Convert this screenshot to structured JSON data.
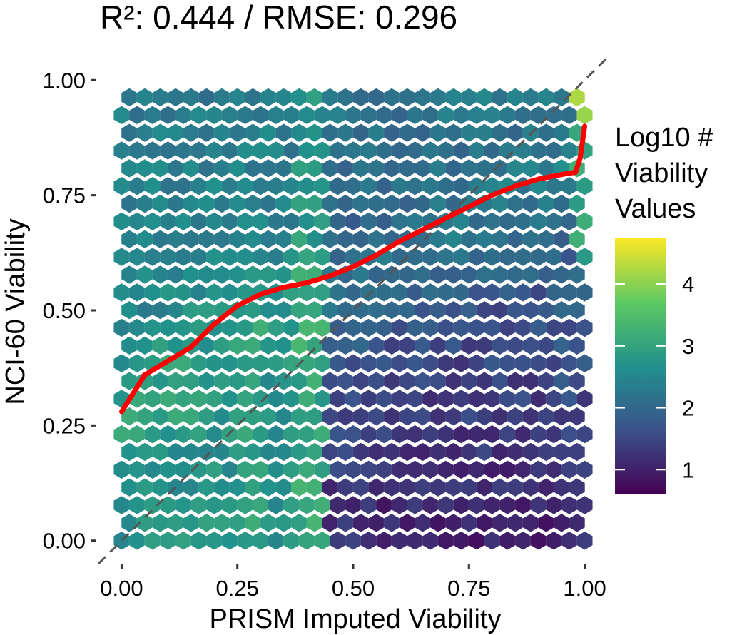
{
  "chart_data": {
    "type": "heatmap",
    "subtype": "hexbin",
    "title": "R²: 0.444 / RMSE: 0.296",
    "xlabel": "PRISM Imputed Viability",
    "ylabel": "NCI-60 Viability",
    "xlim": [
      -0.05,
      1.05
    ],
    "ylim": [
      -0.05,
      1.05
    ],
    "x_ticks": [
      0.0,
      0.25,
      0.5,
      0.75,
      1.0
    ],
    "x_tick_labels": [
      "0.00",
      "0.25",
      "0.50",
      "0.75",
      "1.00"
    ],
    "y_ticks": [
      0.0,
      0.25,
      0.5,
      0.75,
      1.0
    ],
    "y_tick_labels": [
      "0.00",
      "0.25",
      "0.50",
      "0.75",
      "1.00"
    ],
    "grid": false,
    "colorbar": {
      "title_lines": [
        "Log10 #",
        "Viability",
        "Values"
      ],
      "min": 0.6,
      "max": 4.75,
      "ticks": [
        1,
        2,
        3,
        4
      ],
      "tick_labels": [
        "1",
        "2",
        "3",
        "4"
      ],
      "colors": [
        "#440154",
        "#3b528b",
        "#21918c",
        "#5ec962",
        "#fde725"
      ],
      "placement": "right"
    },
    "identity_line": {
      "from": [
        0,
        0
      ],
      "to": [
        1,
        1
      ],
      "style": "dashed",
      "color": "#555555"
    },
    "fit_curve": {
      "color": "#ff0000",
      "x": [
        0.0,
        0.05,
        0.1,
        0.15,
        0.2,
        0.25,
        0.3,
        0.35,
        0.4,
        0.45,
        0.5,
        0.55,
        0.6,
        0.65,
        0.7,
        0.75,
        0.8,
        0.85,
        0.9,
        0.95,
        0.98,
        0.99,
        1.0
      ],
      "y": [
        0.28,
        0.36,
        0.39,
        0.42,
        0.47,
        0.51,
        0.535,
        0.55,
        0.56,
        0.575,
        0.595,
        0.62,
        0.65,
        0.675,
        0.7,
        0.725,
        0.75,
        0.77,
        0.785,
        0.795,
        0.8,
        0.83,
        0.9
      ]
    }
  }
}
